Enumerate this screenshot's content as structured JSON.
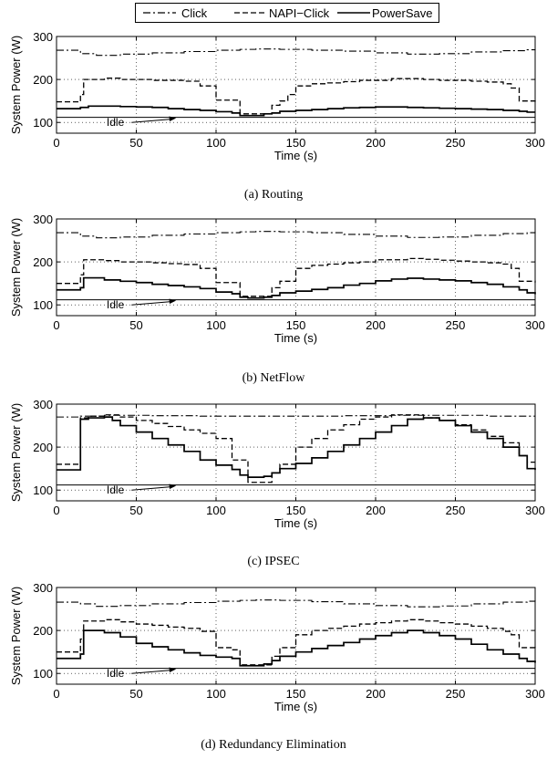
{
  "legend": [
    {
      "name": "Click",
      "dash": "dashdot"
    },
    {
      "name": "NAPI−Click",
      "dash": "dash"
    },
    {
      "name": "PowerSave",
      "dash": "solid"
    }
  ],
  "captions": [
    "(a)  Routing",
    "(b)  NetFlow",
    "(c)  IPSEC",
    "(d)  Redundancy Elimination"
  ],
  "chart_data": [
    {
      "type": "line",
      "caption": "(a)  Routing",
      "xlabel": "Time (s)",
      "ylabel": "System Power (W)",
      "xlim": [
        0,
        300
      ],
      "ylim": [
        75,
        300
      ],
      "xticks": [
        0,
        50,
        100,
        150,
        200,
        250,
        300
      ],
      "yticks": [
        100,
        200,
        300
      ],
      "grid": "dotted",
      "step": true,
      "idle": {
        "label": "Idle",
        "value": 112,
        "arrow_from": [
          47,
          100
        ],
        "arrow_to": [
          75,
          110
        ]
      },
      "series": [
        {
          "name": "Click",
          "x": [
            0,
            10,
            15,
            25,
            40,
            60,
            80,
            100,
            115,
            125,
            140,
            160,
            180,
            200,
            220,
            240,
            260,
            280,
            295,
            300
          ],
          "y": [
            268,
            268,
            260,
            256,
            259,
            262,
            265,
            268,
            270,
            271,
            270,
            268,
            266,
            262,
            259,
            260,
            264,
            267,
            269,
            270
          ]
        },
        {
          "name": "NAPI−Click",
          "x": [
            0,
            10,
            15,
            17,
            20,
            30,
            40,
            50,
            60,
            70,
            80,
            90,
            95,
            100,
            110,
            115,
            120,
            130,
            135,
            140,
            145,
            150,
            160,
            170,
            180,
            190,
            200,
            210,
            220,
            230,
            240,
            250,
            260,
            270,
            280,
            285,
            290,
            295,
            300
          ],
          "y": [
            148,
            148,
            165,
            200,
            200,
            203,
            200,
            200,
            198,
            198,
            196,
            185,
            185,
            152,
            152,
            120,
            120,
            120,
            140,
            150,
            165,
            185,
            190,
            192,
            195,
            198,
            198,
            202,
            202,
            200,
            198,
            198,
            196,
            194,
            190,
            180,
            150,
            150,
            148
          ]
        },
        {
          "name": "PowerSave",
          "x": [
            0,
            10,
            15,
            20,
            30,
            40,
            50,
            60,
            70,
            80,
            90,
            100,
            110,
            115,
            120,
            125,
            130,
            135,
            140,
            150,
            160,
            170,
            180,
            190,
            200,
            210,
            220,
            230,
            240,
            250,
            260,
            270,
            280,
            290,
            295,
            300
          ],
          "y": [
            132,
            132,
            135,
            138,
            138,
            137,
            136,
            135,
            132,
            130,
            128,
            125,
            122,
            116,
            116,
            116,
            120,
            122,
            126,
            128,
            130,
            132,
            134,
            135,
            136,
            136,
            135,
            134,
            133,
            132,
            131,
            130,
            128,
            126,
            124,
            124
          ]
        }
      ]
    },
    {
      "type": "line",
      "caption": "(b)  NetFlow",
      "xlabel": "Time (s)",
      "ylabel": "System Power (W)",
      "xlim": [
        0,
        300
      ],
      "ylim": [
        75,
        300
      ],
      "xticks": [
        0,
        50,
        100,
        150,
        200,
        250,
        300
      ],
      "yticks": [
        100,
        200,
        300
      ],
      "grid": "dotted",
      "step": true,
      "idle": {
        "label": "Idle",
        "value": 112,
        "arrow_from": [
          47,
          100
        ],
        "arrow_to": [
          75,
          110
        ]
      },
      "series": [
        {
          "name": "Click",
          "x": [
            0,
            10,
            15,
            25,
            40,
            60,
            80,
            100,
            115,
            125,
            140,
            160,
            180,
            200,
            220,
            240,
            260,
            280,
            295,
            300
          ],
          "y": [
            268,
            268,
            260,
            256,
            258,
            262,
            265,
            268,
            270,
            271,
            270,
            268,
            264,
            260,
            257,
            258,
            262,
            266,
            268,
            270
          ]
        },
        {
          "name": "NAPI−Click",
          "x": [
            0,
            10,
            15,
            17,
            20,
            30,
            40,
            50,
            60,
            70,
            80,
            90,
            95,
            100,
            110,
            115,
            120,
            130,
            135,
            140,
            150,
            160,
            170,
            180,
            190,
            200,
            210,
            220,
            230,
            240,
            250,
            260,
            270,
            280,
            285,
            290,
            295,
            300
          ],
          "y": [
            150,
            150,
            170,
            205,
            205,
            203,
            200,
            200,
            198,
            196,
            194,
            185,
            185,
            152,
            152,
            120,
            120,
            120,
            140,
            155,
            185,
            192,
            195,
            198,
            200,
            205,
            205,
            208,
            206,
            204,
            202,
            200,
            198,
            195,
            185,
            155,
            155,
            152
          ]
        },
        {
          "name": "PowerSave",
          "x": [
            0,
            10,
            15,
            17,
            20,
            30,
            40,
            50,
            60,
            70,
            80,
            90,
            100,
            110,
            115,
            120,
            125,
            130,
            135,
            140,
            150,
            160,
            170,
            180,
            190,
            200,
            210,
            220,
            230,
            240,
            250,
            260,
            270,
            280,
            290,
            295,
            300
          ],
          "y": [
            135,
            135,
            140,
            163,
            163,
            158,
            155,
            152,
            148,
            145,
            142,
            138,
            130,
            126,
            118,
            116,
            116,
            118,
            122,
            128,
            132,
            136,
            140,
            146,
            150,
            156,
            160,
            162,
            160,
            158,
            156,
            152,
            148,
            142,
            135,
            128,
            125
          ]
        }
      ]
    },
    {
      "type": "line",
      "caption": "(c)  IPSEC",
      "xlabel": "Time (s)",
      "ylabel": "System Power (W)",
      "xlim": [
        0,
        300
      ],
      "ylim": [
        75,
        300
      ],
      "xticks": [
        0,
        50,
        100,
        150,
        200,
        250,
        300
      ],
      "yticks": [
        100,
        200,
        300
      ],
      "grid": "dotted",
      "step": true,
      "idle": {
        "label": "Idle",
        "value": 112,
        "arrow_from": [
          47,
          100
        ],
        "arrow_to": [
          75,
          110
        ]
      },
      "series": [
        {
          "name": "Click",
          "x": [
            0,
            10,
            15,
            30,
            60,
            90,
            120,
            150,
            180,
            210,
            240,
            270,
            300
          ],
          "y": [
            270,
            270,
            272,
            274,
            273,
            272,
            272,
            272,
            273,
            274,
            274,
            272,
            272
          ]
        },
        {
          "name": "NAPI−Click",
          "x": [
            0,
            10,
            15,
            20,
            30,
            40,
            50,
            60,
            70,
            80,
            90,
            100,
            110,
            115,
            120,
            125,
            130,
            135,
            140,
            150,
            160,
            170,
            180,
            190,
            200,
            210,
            220,
            230,
            240,
            250,
            260,
            270,
            280,
            290,
            295,
            300
          ],
          "y": [
            160,
            160,
            268,
            272,
            275,
            270,
            262,
            255,
            248,
            240,
            232,
            220,
            170,
            170,
            118,
            118,
            118,
            140,
            160,
            200,
            220,
            240,
            252,
            265,
            270,
            275,
            275,
            268,
            262,
            252,
            240,
            225,
            210,
            180,
            165,
            165
          ]
        },
        {
          "name": "PowerSave",
          "x": [
            0,
            10,
            15,
            20,
            30,
            35,
            40,
            50,
            60,
            70,
            80,
            90,
            100,
            110,
            115,
            120,
            125,
            130,
            135,
            140,
            150,
            160,
            170,
            180,
            190,
            200,
            210,
            220,
            230,
            240,
            250,
            260,
            270,
            280,
            290,
            295,
            300
          ],
          "y": [
            147,
            147,
            265,
            268,
            270,
            262,
            250,
            235,
            220,
            205,
            190,
            170,
            158,
            148,
            135,
            130,
            130,
            132,
            140,
            150,
            162,
            175,
            190,
            205,
            220,
            235,
            250,
            265,
            268,
            262,
            250,
            235,
            220,
            200,
            180,
            150,
            147
          ]
        }
      ]
    },
    {
      "type": "line",
      "caption": "(d)  Redundancy Elimination",
      "xlabel": "Time (s)",
      "ylabel": "System Power (W)",
      "xlim": [
        0,
        300
      ],
      "ylim": [
        75,
        300
      ],
      "xticks": [
        0,
        50,
        100,
        150,
        200,
        250,
        300
      ],
      "yticks": [
        100,
        200,
        300
      ],
      "grid": "dotted",
      "step": true,
      "idle": {
        "label": "Idle",
        "value": 112,
        "arrow_from": [
          47,
          100
        ],
        "arrow_to": [
          75,
          110
        ]
      },
      "series": [
        {
          "name": "Click",
          "x": [
            0,
            10,
            15,
            25,
            40,
            60,
            80,
            100,
            115,
            125,
            140,
            160,
            180,
            200,
            220,
            240,
            260,
            280,
            295,
            300
          ],
          "y": [
            266,
            266,
            262,
            256,
            258,
            262,
            265,
            268,
            270,
            271,
            270,
            267,
            262,
            258,
            255,
            257,
            262,
            266,
            268,
            270
          ]
        },
        {
          "name": "NAPI−Click",
          "x": [
            0,
            10,
            15,
            17,
            20,
            30,
            40,
            50,
            60,
            70,
            80,
            90,
            95,
            100,
            110,
            115,
            120,
            130,
            135,
            140,
            150,
            160,
            170,
            180,
            190,
            200,
            210,
            220,
            230,
            240,
            250,
            260,
            270,
            280,
            285,
            290,
            295,
            300
          ],
          "y": [
            150,
            150,
            180,
            222,
            222,
            225,
            220,
            215,
            212,
            208,
            205,
            198,
            198,
            160,
            155,
            120,
            120,
            120,
            140,
            160,
            190,
            200,
            205,
            210,
            215,
            218,
            222,
            225,
            222,
            218,
            215,
            210,
            205,
            198,
            190,
            160,
            160,
            158
          ]
        },
        {
          "name": "PowerSave",
          "x": [
            0,
            10,
            15,
            17,
            20,
            30,
            40,
            50,
            60,
            70,
            80,
            90,
            100,
            110,
            115,
            120,
            125,
            130,
            135,
            140,
            150,
            160,
            170,
            180,
            190,
            200,
            210,
            220,
            230,
            240,
            250,
            260,
            270,
            280,
            290,
            295,
            300
          ],
          "y": [
            135,
            135,
            145,
            200,
            200,
            195,
            185,
            170,
            162,
            155,
            148,
            142,
            138,
            135,
            118,
            118,
            118,
            122,
            130,
            140,
            150,
            158,
            165,
            172,
            180,
            188,
            195,
            200,
            195,
            188,
            180,
            168,
            155,
            145,
            135,
            128,
            125
          ]
        }
      ]
    }
  ]
}
